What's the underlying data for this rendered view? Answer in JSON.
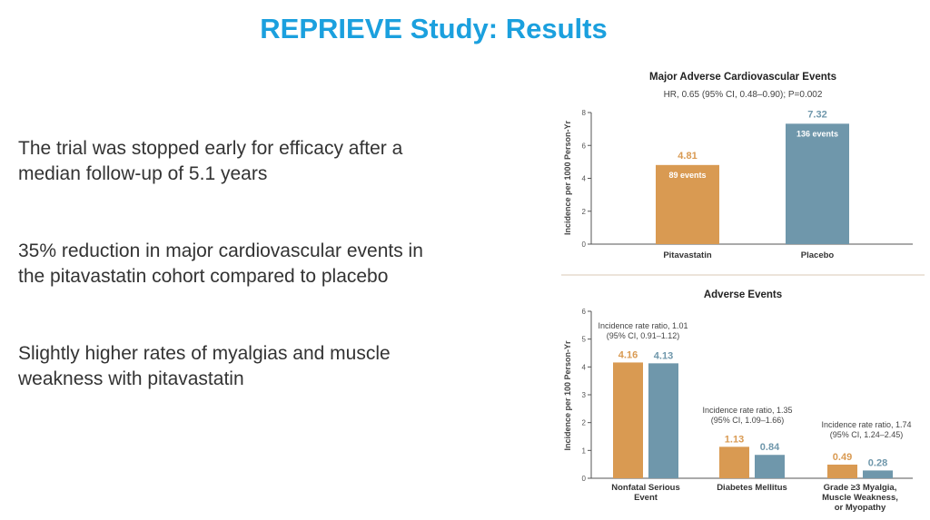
{
  "slide": {
    "title": "REPRIEVE Study: Results",
    "bullets": [
      [
        "The trial was stopped early for efficacy after a",
        "median follow-up of 5.1 years"
      ],
      [
        "35% reduction in major cardiovascular events in",
        "the pitavastatin cohort compared to placebo"
      ],
      [
        "Slightly higher rates of myalgias and muscle",
        "weakness with pitavastatin"
      ]
    ]
  },
  "colors": {
    "title": "#1ba0de",
    "pitavastatin": "#d99a52",
    "placebo": "#6f97ab",
    "text": "#333333"
  },
  "chart_data": [
    {
      "type": "bar",
      "title": "Major Adverse Cardiovascular Events",
      "subtitle": "HR, 0.65 (95% CI, 0.48–0.90); P=0.002",
      "ylabel": "Incidence per 1000 Person-Yr",
      "ylim": [
        0,
        8
      ],
      "yticks": [
        "0",
        "2",
        "4",
        "6",
        "8"
      ],
      "categories": [
        "Pitavastatin",
        "Placebo"
      ],
      "values": [
        4.81,
        7.32
      ],
      "value_labels": [
        "4.81",
        "7.32"
      ],
      "event_labels": [
        "89 events",
        "136 events"
      ],
      "grid": false
    },
    {
      "type": "bar",
      "title": "Adverse Events",
      "ylabel": "Incidence per 100 Person-Yr",
      "ylim": [
        0,
        6
      ],
      "yticks": [
        "0",
        "1",
        "2",
        "3",
        "4",
        "5",
        "6"
      ],
      "categories": [
        [
          "Nonfatal Serious",
          "Event"
        ],
        [
          "Diabetes Mellitus"
        ],
        [
          "Grade ≥3 Myalgia,",
          "Muscle Weakness,",
          "or Myopathy"
        ]
      ],
      "series": [
        {
          "values": [
            4.16,
            1.13,
            0.49
          ],
          "labels": [
            "4.16",
            "1.13",
            "0.49"
          ]
        },
        {
          "values": [
            4.13,
            0.84,
            0.28
          ],
          "labels": [
            "4.13",
            "0.84",
            "0.28"
          ]
        }
      ],
      "annotations": [
        [
          "Incidence rate ratio, 1.01",
          "(95% CI, 0.91–1.12)"
        ],
        [
          "Incidence rate ratio, 1.35",
          "(95% CI, 1.09–1.66)"
        ],
        [
          "Incidence rate ratio, 1.74",
          "(95% CI, 1.24–2.45)"
        ]
      ],
      "grid": false
    }
  ]
}
